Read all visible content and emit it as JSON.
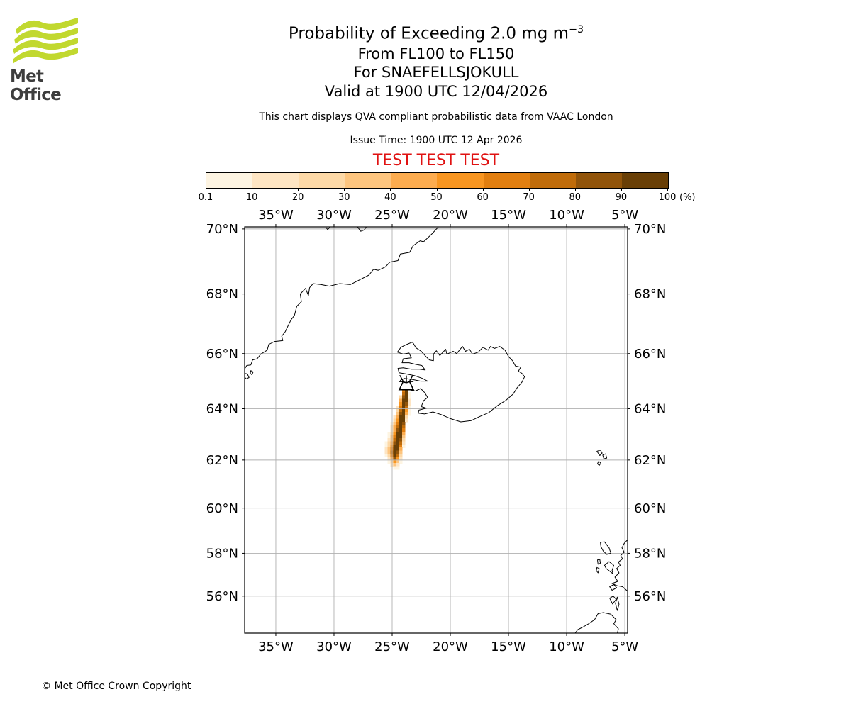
{
  "header": {
    "logo_label": "Met Office",
    "title_main": "Probability of Exceeding 2.0 mg m",
    "title_sup": "−3",
    "subtitle_flight_levels": "From FL100 to FL150",
    "subtitle_volcano": "For SNAEFELLSJOKULL",
    "subtitle_valid": "Valid at 1900 UTC 12/04/2026",
    "note": "This chart displays QVA compliant probabilistic data from VAAC London",
    "issue_time": "Issue Time: 1900 UTC 12 Apr 2026",
    "test_banner": "TEST TEST TEST",
    "test_color": "#e01212"
  },
  "colorbar": {
    "unit": "(%)",
    "tick_labels": [
      "0.1",
      "10",
      "20",
      "30",
      "40",
      "50",
      "60",
      "70",
      "80",
      "90",
      "100"
    ],
    "segment_colors": [
      "#fdf4e2",
      "#fee5c3",
      "#fdd9a7",
      "#fdc57f",
      "#fcac4f",
      "#f89621",
      "#e27f10",
      "#c06c0a",
      "#91540a",
      "#693f06"
    ]
  },
  "chart_data": {
    "type": "heatmap",
    "title": "Probability of Exceeding 2.0 mg m−3",
    "projection": "mercator",
    "lon_range": [
      -37.68,
      -4.76
    ],
    "lat_range": [
      54.18,
      70.06
    ],
    "x_tick_lons": [
      -35,
      -30,
      -25,
      -20,
      -15,
      -10,
      -5
    ],
    "x_tick_labels": [
      "35°W",
      "30°W",
      "25°W",
      "20°W",
      "15°W",
      "10°W",
      "5°W"
    ],
    "y_tick_lats": [
      70,
      68,
      66,
      64,
      62,
      60,
      58,
      56
    ],
    "y_tick_labels": [
      "70°N",
      "68°N",
      "66°N",
      "64°N",
      "62°N",
      "60°N",
      "58°N",
      "56°N"
    ],
    "grid_on": true,
    "grid_color": "#b0b0b0",
    "coast_color": "#000000",
    "volcano_marker": {
      "name": "SNAEFELLSJOKULL",
      "lon": -23.78,
      "lat": 64.81
    },
    "probability_bins_pct": [
      [
        0.1,
        10
      ],
      [
        10,
        20
      ],
      [
        20,
        30
      ],
      [
        30,
        40
      ],
      [
        40,
        50
      ],
      [
        50,
        60
      ],
      [
        60,
        70
      ],
      [
        70,
        80
      ],
      [
        80,
        90
      ],
      [
        90,
        100
      ]
    ],
    "plume_raster": {
      "lon_west_edge": -25.9,
      "dlon": 0.25,
      "lat_north_edge": 64.875,
      "dlat": 0.125,
      "code_order": "123456789A",
      "rows": [
        "........A.",
        ".......7A.",
        ".......8A1",
        "......39A1",
        "......5AA2",
        "......6A92",
        ".....27A81",
        ".....38A61",
        ".....49A51",
        "....25AA3.",
        "....36AA2.",
        "...147A9..",
        "...258A8..",
        "...259A7..",
        "..136AA5..",
        "..147AA4..",
        "..248A93..",
        ".1359A82..",
        ".136AA71..",
        ".247AA5...",
        ".248A94...",
        ".137A83...",
        "..25962...",
        "..13641...",
        "...242....",
        "....11...."
      ]
    },
    "coastlines": {
      "greenland_east_coast": [
        [
          -21.0,
          70.07
        ],
        [
          -21.6,
          69.85
        ],
        [
          -22.3,
          69.62
        ],
        [
          -22.6,
          69.65
        ],
        [
          -23.2,
          69.5
        ],
        [
          -23.5,
          69.3
        ],
        [
          -24.3,
          69.25
        ],
        [
          -24.5,
          69.05
        ],
        [
          -25.2,
          69.0
        ],
        [
          -25.6,
          68.85
        ],
        [
          -26.2,
          68.75
        ],
        [
          -26.6,
          68.78
        ],
        [
          -27.0,
          68.6
        ],
        [
          -27.8,
          68.45
        ],
        [
          -28.6,
          68.3
        ],
        [
          -29.5,
          68.33
        ],
        [
          -30.4,
          68.25
        ],
        [
          -31.1,
          68.3
        ],
        [
          -31.8,
          68.33
        ],
        [
          -32.1,
          68.2
        ],
        [
          -32.2,
          67.95
        ],
        [
          -32.45,
          68.18
        ],
        [
          -32.9,
          68.0
        ],
        [
          -32.8,
          67.75
        ],
        [
          -33.2,
          67.6
        ],
        [
          -33.4,
          67.3
        ],
        [
          -33.7,
          67.15
        ],
        [
          -34.2,
          66.75
        ],
        [
          -34.5,
          66.6
        ],
        [
          -34.4,
          66.45
        ],
        [
          -35.1,
          66.42
        ],
        [
          -35.6,
          66.32
        ],
        [
          -35.75,
          66.12
        ],
        [
          -36.3,
          65.98
        ],
        [
          -36.6,
          65.82
        ],
        [
          -37.0,
          65.78
        ],
        [
          -37.15,
          65.6
        ],
        [
          -37.5,
          65.58
        ],
        [
          -37.7,
          65.45
        ]
      ],
      "greenland_fjord_notch_a": [
        [
          -30.75,
          70.07
        ],
        [
          -30.55,
          69.98
        ],
        [
          -30.3,
          70.07
        ]
      ],
      "greenland_fjord_notch_b": [
        [
          -28.0,
          70.07
        ],
        [
          -27.7,
          69.93
        ],
        [
          -27.4,
          69.97
        ],
        [
          -27.2,
          70.07
        ]
      ],
      "greenland_islands": [
        [
          [
            -37.7,
            65.3
          ],
          [
            -37.45,
            65.28
          ],
          [
            -37.3,
            65.15
          ],
          [
            -37.55,
            65.1
          ],
          [
            -37.7,
            65.18
          ]
        ],
        [
          [
            -37.15,
            65.4
          ],
          [
            -36.95,
            65.35
          ],
          [
            -37.05,
            65.25
          ],
          [
            -37.2,
            65.3
          ],
          [
            -37.15,
            65.4
          ]
        ]
      ],
      "iceland": [
        [
          -23.95,
          64.78
        ],
        [
          -23.5,
          64.7
        ],
        [
          -23.0,
          64.66
        ],
        [
          -22.55,
          64.75
        ],
        [
          -22.2,
          64.6
        ],
        [
          -21.95,
          64.42
        ],
        [
          -22.3,
          64.3
        ],
        [
          -22.5,
          64.08
        ],
        [
          -22.05,
          64.02
        ],
        [
          -22.7,
          63.95
        ],
        [
          -22.75,
          63.83
        ],
        [
          -22.2,
          63.8
        ],
        [
          -21.5,
          63.88
        ],
        [
          -20.8,
          63.78
        ],
        [
          -20.0,
          63.63
        ],
        [
          -19.1,
          63.5
        ],
        [
          -18.2,
          63.55
        ],
        [
          -17.5,
          63.7
        ],
        [
          -16.7,
          63.85
        ],
        [
          -16.0,
          64.1
        ],
        [
          -15.2,
          64.32
        ],
        [
          -14.6,
          64.55
        ],
        [
          -14.25,
          64.78
        ],
        [
          -13.85,
          64.98
        ],
        [
          -13.62,
          65.18
        ],
        [
          -13.85,
          65.3
        ],
        [
          -14.15,
          65.38
        ],
        [
          -13.95,
          65.52
        ],
        [
          -14.4,
          65.56
        ],
        [
          -14.65,
          65.75
        ],
        [
          -15.0,
          65.9
        ],
        [
          -15.3,
          66.12
        ],
        [
          -15.75,
          66.25
        ],
        [
          -16.2,
          66.18
        ],
        [
          -16.55,
          66.25
        ],
        [
          -16.75,
          66.12
        ],
        [
          -17.2,
          66.22
        ],
        [
          -17.6,
          66.05
        ],
        [
          -18.1,
          65.98
        ],
        [
          -18.35,
          66.15
        ],
        [
          -18.7,
          66.08
        ],
        [
          -18.95,
          66.25
        ],
        [
          -19.45,
          66.0
        ],
        [
          -19.75,
          66.08
        ],
        [
          -20.3,
          65.98
        ],
        [
          -20.4,
          66.15
        ],
        [
          -20.9,
          65.93
        ],
        [
          -21.2,
          66.1
        ],
        [
          -21.45,
          65.98
        ],
        [
          -21.45,
          65.75
        ],
        [
          -21.8,
          65.78
        ],
        [
          -22.1,
          65.9
        ],
        [
          -22.5,
          66.08
        ],
        [
          -22.95,
          66.2
        ],
        [
          -23.25,
          66.4
        ],
        [
          -23.85,
          66.3
        ],
        [
          -24.25,
          66.22
        ],
        [
          -24.55,
          66.05
        ],
        [
          -24.05,
          65.98
        ],
        [
          -23.55,
          66.02
        ],
        [
          -23.35,
          65.85
        ],
        [
          -24.05,
          65.82
        ],
        [
          -24.15,
          65.68
        ],
        [
          -23.55,
          65.68
        ],
        [
          -22.95,
          65.62
        ],
        [
          -22.45,
          65.58
        ],
        [
          -22.15,
          65.42
        ],
        [
          -22.65,
          65.45
        ],
        [
          -23.35,
          65.45
        ],
        [
          -24.05,
          65.5
        ],
        [
          -24.5,
          65.48
        ],
        [
          -24.4,
          65.32
        ],
        [
          -23.8,
          65.28
        ],
        [
          -23.1,
          65.22
        ],
        [
          -22.4,
          65.12
        ],
        [
          -21.95,
          65.02
        ],
        [
          -22.55,
          65.02
        ],
        [
          -23.25,
          65.08
        ],
        [
          -23.95,
          65.12
        ],
        [
          -24.3,
          65.05
        ],
        [
          -23.9,
          64.92
        ],
        [
          -23.4,
          64.9
        ],
        [
          -23.95,
          64.78
        ]
      ],
      "faroe_islands": [
        [
          [
            -7.4,
            62.35
          ],
          [
            -7.1,
            62.4
          ],
          [
            -6.95,
            62.28
          ],
          [
            -7.15,
            62.18
          ],
          [
            -7.4,
            62.35
          ]
        ],
        [
          [
            -6.9,
            62.2
          ],
          [
            -6.65,
            62.25
          ],
          [
            -6.55,
            62.08
          ],
          [
            -6.8,
            62.05
          ],
          [
            -6.9,
            62.2
          ]
        ],
        [
          [
            -7.25,
            61.95
          ],
          [
            -7.05,
            61.88
          ],
          [
            -7.2,
            61.78
          ],
          [
            -7.35,
            61.85
          ],
          [
            -7.25,
            61.95
          ]
        ]
      ],
      "outer_hebrides": [
        [
          -7.1,
          58.5
        ],
        [
          -6.75,
          58.52
        ],
        [
          -6.35,
          58.25
        ],
        [
          -6.2,
          58.0
        ],
        [
          -6.55,
          57.95
        ],
        [
          -6.85,
          58.1
        ],
        [
          -7.05,
          58.3
        ],
        [
          -7.1,
          58.5
        ]
      ],
      "uist_islands": [
        [
          [
            -7.35,
            57.7
          ],
          [
            -7.15,
            57.72
          ],
          [
            -7.1,
            57.55
          ],
          [
            -7.3,
            57.5
          ],
          [
            -7.35,
            57.7
          ]
        ],
        [
          [
            -7.4,
            57.35
          ],
          [
            -7.2,
            57.3
          ],
          [
            -7.3,
            57.1
          ],
          [
            -7.45,
            57.2
          ],
          [
            -7.4,
            57.35
          ]
        ]
      ],
      "skye": [
        [
          -6.75,
          57.45
        ],
        [
          -6.35,
          57.62
        ],
        [
          -5.95,
          57.45
        ],
        [
          -6.1,
          57.2
        ],
        [
          -6.0,
          57.05
        ],
        [
          -6.35,
          57.2
        ],
        [
          -6.6,
          57.3
        ],
        [
          -6.75,
          57.45
        ]
      ],
      "scotland_mainland": [
        [
          -4.7,
          58.65
        ],
        [
          -5.05,
          58.45
        ],
        [
          -5.25,
          58.25
        ],
        [
          -5.05,
          58.05
        ],
        [
          -5.35,
          57.9
        ],
        [
          -5.2,
          57.75
        ],
        [
          -5.55,
          57.6
        ],
        [
          -5.4,
          57.45
        ],
        [
          -5.7,
          57.3
        ],
        [
          -5.5,
          57.1
        ],
        [
          -5.85,
          56.9
        ],
        [
          -5.6,
          56.7
        ],
        [
          -6.1,
          56.6
        ],
        [
          -5.7,
          56.5
        ],
        [
          -5.2,
          56.45
        ],
        [
          -4.9,
          56.3
        ],
        [
          -4.7,
          56.2
        ]
      ],
      "inner_hebrides": [
        [
          [
            -6.3,
            56.45
          ],
          [
            -5.95,
            56.55
          ],
          [
            -5.7,
            56.4
          ],
          [
            -6.1,
            56.28
          ],
          [
            -6.3,
            56.45
          ]
        ],
        [
          [
            -6.3,
            55.9
          ],
          [
            -6.0,
            56.0
          ],
          [
            -5.75,
            55.85
          ],
          [
            -6.05,
            55.62
          ],
          [
            -6.3,
            55.9
          ]
        ]
      ],
      "kintyre": [
        [
          -5.65,
          55.95
        ],
        [
          -5.5,
          55.6
        ],
        [
          -5.65,
          55.3
        ],
        [
          -5.8,
          55.65
        ],
        [
          -5.65,
          55.95
        ]
      ],
      "ireland": [
        [
          -9.3,
          54.15
        ],
        [
          -9.05,
          54.35
        ],
        [
          -8.55,
          54.5
        ],
        [
          -8.1,
          54.65
        ],
        [
          -7.6,
          54.85
        ],
        [
          -7.3,
          55.15
        ],
        [
          -6.85,
          55.2
        ],
        [
          -6.2,
          55.12
        ],
        [
          -5.75,
          54.85
        ],
        [
          -5.95,
          54.65
        ],
        [
          -5.55,
          54.4
        ],
        [
          -5.65,
          54.15
        ]
      ]
    }
  },
  "footer": {
    "copyright": "© Met Office Crown Copyright"
  }
}
